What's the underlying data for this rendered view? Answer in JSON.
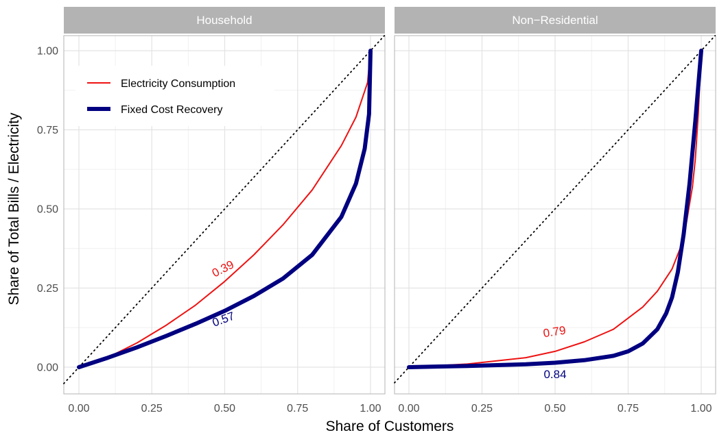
{
  "chart_data": {
    "type": "line",
    "xlabel": "Share of Customers",
    "ylabel": "Share of Total Bills / Electricity",
    "xlim": [
      0,
      1
    ],
    "ylim": [
      0,
      1
    ],
    "x_ticks": [
      "0.00",
      "0.25",
      "0.50",
      "0.75",
      "1.00"
    ],
    "y_ticks": [
      "0.00",
      "0.25",
      "0.50",
      "0.75",
      "1.00"
    ],
    "grid": true,
    "reference_line": "y = x (dotted)",
    "legend": {
      "placement": "top-left",
      "entries": [
        {
          "name": "Electricity Consumption",
          "color": "#ee1111"
        },
        {
          "name": "Fixed Cost Recovery",
          "color": "#000080"
        }
      ]
    },
    "panels": [
      {
        "title": "Household",
        "series": [
          {
            "name": "Electricity Consumption",
            "color": "#ee1111",
            "x": [
              0,
              0.1,
              0.2,
              0.3,
              0.4,
              0.5,
              0.6,
              0.7,
              0.8,
              0.9,
              0.95,
              0.99,
              1.0
            ],
            "y": [
              0,
              0.031,
              0.077,
              0.133,
              0.196,
              0.271,
              0.355,
              0.45,
              0.56,
              0.7,
              0.79,
              0.9,
              1.0
            ],
            "label": "0.39"
          },
          {
            "name": "Fixed Cost Recovery",
            "color": "#000080",
            "x": [
              0,
              0.1,
              0.2,
              0.3,
              0.4,
              0.5,
              0.6,
              0.7,
              0.8,
              0.9,
              0.95,
              0.98,
              0.995,
              1.0
            ],
            "y": [
              0,
              0.03,
              0.063,
              0.099,
              0.137,
              0.178,
              0.225,
              0.28,
              0.355,
              0.475,
              0.58,
              0.69,
              0.8,
              1.0
            ],
            "label": "0.57"
          }
        ]
      },
      {
        "title": "Non−Residential",
        "series": [
          {
            "name": "Electricity Consumption",
            "color": "#ee1111",
            "x": [
              0,
              0.2,
              0.4,
              0.5,
              0.6,
              0.7,
              0.8,
              0.85,
              0.9,
              0.93,
              0.95,
              0.97,
              0.98,
              0.99,
              1.0
            ],
            "y": [
              0,
              0.01,
              0.03,
              0.05,
              0.08,
              0.12,
              0.19,
              0.24,
              0.31,
              0.38,
              0.46,
              0.57,
              0.66,
              0.8,
              1.0
            ],
            "label": "0.79"
          },
          {
            "name": "Fixed Cost Recovery",
            "color": "#000080",
            "x": [
              0,
              0.2,
              0.4,
              0.5,
              0.6,
              0.7,
              0.75,
              0.8,
              0.85,
              0.88,
              0.9,
              0.92,
              0.94,
              0.96,
              0.98,
              1.0
            ],
            "y": [
              0,
              0.004,
              0.009,
              0.014,
              0.022,
              0.036,
              0.05,
              0.075,
              0.12,
              0.17,
              0.22,
              0.3,
              0.42,
              0.58,
              0.78,
              1.0
            ],
            "label": "0.84"
          }
        ]
      }
    ]
  }
}
